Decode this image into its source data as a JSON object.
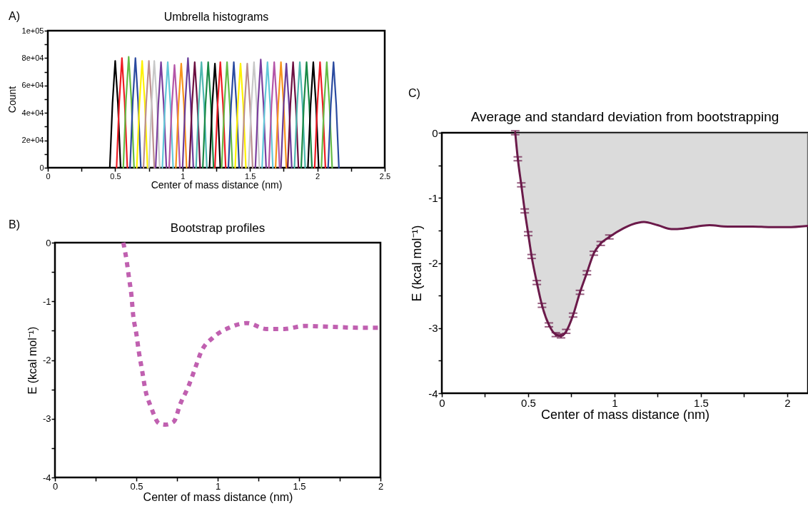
{
  "chart_data": [
    {
      "type": "line",
      "title": "Umbrella histograms",
      "xlabel": "Center of mass distance (nm)",
      "ylabel": "Count",
      "annotations": [
        "A)"
      ],
      "xlim": [
        0,
        2.5
      ],
      "ylim": [
        0,
        100000
      ],
      "xticks": [
        0,
        {
          "value": 0.25,
          "label": null
        },
        0.5,
        {
          "value": 0.75,
          "label": null
        },
        1,
        {
          "value": 1.25,
          "label": null
        },
        1.5,
        {
          "value": 1.75,
          "label": null
        },
        2,
        {
          "value": 2.25,
          "label": null
        },
        2.5
      ],
      "yticks": [
        0,
        {
          "value": 10000,
          "label": null
        },
        {
          "value": 20000,
          "label": "2e+04"
        },
        {
          "value": 30000,
          "label": null
        },
        {
          "value": 40000,
          "label": "4e+04"
        },
        {
          "value": 50000,
          "label": null
        },
        {
          "value": 60000,
          "label": "6e+04"
        },
        {
          "value": 70000,
          "label": null
        },
        {
          "value": 80000,
          "label": "8e+04"
        },
        {
          "value": 90000,
          "label": null
        },
        {
          "value": 100000,
          "label": "1e+05"
        }
      ],
      "line_style": "solid",
      "series": [
        {
          "color": "#000000",
          "x": [
            0.46,
            0.48,
            0.5,
            0.52,
            0.54
          ],
          "values": [
            0,
            47000,
            78000,
            47000,
            0
          ]
        },
        {
          "color": "#ee1c24",
          "x": [
            0.51,
            0.53,
            0.55,
            0.57,
            0.59
          ],
          "values": [
            0,
            48000,
            80000,
            48000,
            0
          ]
        },
        {
          "color": "#65bc45",
          "x": [
            0.56,
            0.58,
            0.6,
            0.62,
            0.64
          ],
          "values": [
            0,
            49000,
            81000,
            49000,
            0
          ]
        },
        {
          "color": "#2b4ba0",
          "x": [
            0.61,
            0.63,
            0.65,
            0.67,
            0.69
          ],
          "values": [
            0,
            48000,
            80000,
            48000,
            0
          ]
        },
        {
          "color": "#fff200",
          "x": [
            0.66,
            0.68,
            0.7,
            0.72,
            0.74
          ],
          "values": [
            0,
            47000,
            78000,
            47000,
            0
          ]
        },
        {
          "color": "#bc8f8f",
          "x": [
            0.71,
            0.73,
            0.75,
            0.77,
            0.79
          ],
          "values": [
            0,
            47000,
            78000,
            47000,
            0
          ]
        },
        {
          "color": "#c8c8c8",
          "x": [
            0.75,
            0.77,
            0.79,
            0.81,
            0.83
          ],
          "values": [
            0,
            47000,
            78000,
            47000,
            0
          ]
        },
        {
          "color": "#7b3f9e",
          "x": [
            0.8,
            0.82,
            0.84,
            0.86,
            0.88
          ],
          "values": [
            0,
            46000,
            77000,
            46000,
            0
          ]
        },
        {
          "color": "#63c8d8",
          "x": [
            0.85,
            0.87,
            0.89,
            0.91,
            0.93
          ],
          "values": [
            0,
            46000,
            77000,
            46000,
            0
          ]
        },
        {
          "color": "#b556a8",
          "x": [
            0.9,
            0.92,
            0.94,
            0.96,
            0.98
          ],
          "values": [
            0,
            45000,
            75000,
            45000,
            0
          ]
        },
        {
          "color": "#f7941d",
          "x": [
            0.95,
            0.97,
            0.99,
            1.01,
            1.03
          ],
          "values": [
            0,
            46000,
            76000,
            46000,
            0
          ]
        },
        {
          "color": "#6a3d9a",
          "x": [
            1.0,
            1.02,
            1.04,
            1.06,
            1.08
          ],
          "values": [
            0,
            48000,
            80000,
            48000,
            0
          ]
        },
        {
          "color": "#6b1041",
          "x": [
            1.05,
            1.07,
            1.09,
            1.11,
            1.13
          ],
          "values": [
            0,
            46000,
            77000,
            46000,
            0
          ]
        },
        {
          "color": "#4fb8b0",
          "x": [
            1.1,
            1.12,
            1.14,
            1.16,
            1.18
          ],
          "values": [
            0,
            46000,
            77000,
            46000,
            0
          ]
        },
        {
          "color": "#1a8a47",
          "x": [
            1.15,
            1.17,
            1.19,
            1.21,
            1.23
          ],
          "values": [
            0,
            46000,
            77000,
            46000,
            0
          ]
        },
        {
          "color": "#000000",
          "x": [
            1.2,
            1.22,
            1.24,
            1.26,
            1.28
          ],
          "values": [
            0,
            46000,
            76000,
            46000,
            0
          ]
        },
        {
          "color": "#ee1c24",
          "x": [
            1.24,
            1.26,
            1.28,
            1.3,
            1.32
          ],
          "values": [
            0,
            46000,
            77000,
            46000,
            0
          ]
        },
        {
          "color": "#65bc45",
          "x": [
            1.29,
            1.31,
            1.33,
            1.35,
            1.37
          ],
          "values": [
            0,
            46000,
            77000,
            46000,
            0
          ]
        },
        {
          "color": "#2b4ba0",
          "x": [
            1.34,
            1.36,
            1.38,
            1.4,
            1.42
          ],
          "values": [
            0,
            46000,
            77000,
            46000,
            0
          ]
        },
        {
          "color": "#fff200",
          "x": [
            1.39,
            1.41,
            1.43,
            1.45,
            1.47
          ],
          "values": [
            0,
            46000,
            76000,
            46000,
            0
          ]
        },
        {
          "color": "#bc8f8f",
          "x": [
            1.44,
            1.46,
            1.48,
            1.5,
            1.52
          ],
          "values": [
            0,
            46000,
            76000,
            46000,
            0
          ]
        },
        {
          "color": "#c8c8c8",
          "x": [
            1.49,
            1.51,
            1.53,
            1.55,
            1.57
          ],
          "values": [
            0,
            46000,
            77000,
            46000,
            0
          ]
        },
        {
          "color": "#7b3f9e",
          "x": [
            1.54,
            1.56,
            1.58,
            1.6,
            1.62
          ],
          "values": [
            0,
            47000,
            79000,
            47000,
            0
          ]
        },
        {
          "color": "#63c8d8",
          "x": [
            1.59,
            1.61,
            1.63,
            1.65,
            1.67
          ],
          "values": [
            0,
            46000,
            77000,
            46000,
            0
          ]
        },
        {
          "color": "#b556a8",
          "x": [
            1.64,
            1.66,
            1.68,
            1.7,
            1.72
          ],
          "values": [
            0,
            46000,
            77000,
            46000,
            0
          ]
        },
        {
          "color": "#f7941d",
          "x": [
            1.69,
            1.71,
            1.73,
            1.75,
            1.77
          ],
          "values": [
            0,
            46000,
            77000,
            46000,
            0
          ]
        },
        {
          "color": "#6a3d9a",
          "x": [
            1.73,
            1.75,
            1.77,
            1.79,
            1.81
          ],
          "values": [
            0,
            46000,
            76000,
            46000,
            0
          ]
        },
        {
          "color": "#6b1041",
          "x": [
            1.78,
            1.8,
            1.82,
            1.84,
            1.86
          ],
          "values": [
            0,
            46000,
            77000,
            46000,
            0
          ]
        },
        {
          "color": "#4fb8b0",
          "x": [
            1.83,
            1.85,
            1.87,
            1.89,
            1.91
          ],
          "values": [
            0,
            46000,
            77000,
            46000,
            0
          ]
        },
        {
          "color": "#1a8a47",
          "x": [
            1.88,
            1.9,
            1.92,
            1.94,
            1.96
          ],
          "values": [
            0,
            46000,
            77000,
            46000,
            0
          ]
        },
        {
          "color": "#000000",
          "x": [
            1.93,
            1.95,
            1.97,
            1.99,
            2.01
          ],
          "values": [
            0,
            46000,
            77000,
            46000,
            0
          ]
        },
        {
          "color": "#ee1c24",
          "x": [
            1.98,
            2.0,
            2.02,
            2.04,
            2.06
          ],
          "values": [
            0,
            46000,
            77000,
            46000,
            0
          ]
        },
        {
          "color": "#65bc45",
          "x": [
            2.03,
            2.05,
            2.07,
            2.09,
            2.11
          ],
          "values": [
            0,
            46000,
            77000,
            46000,
            0
          ]
        },
        {
          "color": "#2b4ba0",
          "x": [
            2.08,
            2.1,
            2.12,
            2.14,
            2.16
          ],
          "values": [
            0,
            46000,
            77000,
            46000,
            0
          ]
        }
      ]
    },
    {
      "type": "line",
      "title": "Bootstrap profiles",
      "xlabel": "Center of mass distance (nm)",
      "ylabel": "E (kcal mol⁻¹)",
      "annotations": [
        "B)"
      ],
      "xlim": [
        0,
        2
      ],
      "ylim": [
        -4,
        0
      ],
      "xticks": [
        0,
        {
          "value": 0.25,
          "label": null
        },
        0.5,
        {
          "value": 0.75,
          "label": null
        },
        1,
        {
          "value": 1.25,
          "label": null
        },
        1.5,
        {
          "value": 1.75,
          "label": null
        },
        2
      ],
      "yticks": [
        -4,
        {
          "value": -3.5,
          "label": null
        },
        -3,
        {
          "value": -2.5,
          "label": null
        },
        -2,
        {
          "value": -1.5,
          "label": null
        },
        -1,
        {
          "value": -0.5,
          "label": null
        },
        0
      ],
      "line_style": "dashed",
      "series": [
        {
          "color": "#c060b0",
          "x": [
            0.42,
            0.44,
            0.455,
            0.47,
            0.48,
            0.5,
            0.515,
            0.535,
            0.555,
            0.59,
            0.64,
            0.68,
            0.73,
            0.77,
            0.82,
            0.86,
            0.9,
            0.97,
            1.07,
            1.18,
            1.3,
            1.41,
            1.53,
            1.65,
            1.75,
            1.87,
            2.0
          ],
          "values": [
            0,
            -0.3,
            -0.6,
            -0.9,
            -1.22,
            -1.55,
            -1.85,
            -2.17,
            -2.5,
            -2.8,
            -3.08,
            -3.1,
            -3.05,
            -2.75,
            -2.45,
            -2.15,
            -1.85,
            -1.62,
            -1.45,
            -1.37,
            -1.47,
            -1.47,
            -1.42,
            -1.43,
            -1.44,
            -1.45,
            -1.45
          ]
        }
      ]
    },
    {
      "type": "line",
      "title": "Average and standard deviation from bootstrapping",
      "xlabel": "Center of mass distance (nm)",
      "ylabel": "E (kcal mol⁻¹)",
      "annotations": [
        "C)"
      ],
      "xlim": [
        0,
        2.12
      ],
      "ylim": [
        -4,
        0
      ],
      "xticks": [
        0,
        {
          "value": 0.25,
          "label": null
        },
        0.5,
        {
          "value": 0.75,
          "label": null
        },
        1,
        {
          "value": 1.25,
          "label": null
        },
        1.5,
        {
          "value": 1.75,
          "label": null
        },
        2
      ],
      "yticks": [
        -4,
        {
          "value": -3.5,
          "label": null
        },
        -3,
        {
          "value": -2.5,
          "label": null
        },
        -2,
        {
          "value": -1.5,
          "label": null
        },
        -1,
        {
          "value": -0.5,
          "label": null
        },
        0
      ],
      "line_style": "solid",
      "series": [
        {
          "color": "#6b1a4a",
          "x": [
            0.425,
            0.44,
            0.46,
            0.48,
            0.5,
            0.52,
            0.55,
            0.58,
            0.62,
            0.66,
            0.69,
            0.72,
            0.76,
            0.8,
            0.84,
            0.88,
            0.92,
            0.97,
            1.05,
            1.1,
            1.17,
            1.25,
            1.33,
            1.4,
            1.5,
            1.55,
            1.65,
            1.8,
            1.9,
            2.0,
            2.12
          ],
          "values": [
            0,
            -0.4,
            -0.8,
            -1.2,
            -1.55,
            -1.9,
            -2.3,
            -2.65,
            -2.95,
            -3.1,
            -3.12,
            -3.05,
            -2.8,
            -2.45,
            -2.15,
            -1.85,
            -1.7,
            -1.6,
            -1.47,
            -1.41,
            -1.37,
            -1.42,
            -1.48,
            -1.47,
            -1.43,
            -1.42,
            -1.44,
            -1.44,
            -1.45,
            -1.45,
            -1.43
          ],
          "errors": [
            0.03,
            0.03,
            0.03,
            0.03,
            0.03,
            0.03,
            0.03,
            0.03,
            0.03,
            0.03,
            0.03,
            0.03,
            0.03,
            0.03,
            0.03,
            0.03,
            0.03,
            0.03,
            null,
            null,
            null,
            null,
            null,
            null,
            null,
            null,
            null,
            null,
            null,
            null,
            null
          ],
          "lower": [
            0,
            -0.4,
            -0.8,
            -1.2,
            -1.55,
            -1.9,
            -2.3,
            -2.65,
            -2.95,
            -3.1,
            -3.12,
            -3.05,
            -2.8,
            -2.45,
            -2.15,
            -1.85,
            -1.7,
            -1.6,
            -1.47,
            -1.41,
            -1.37,
            -1.42,
            -1.48,
            -1.47,
            -1.43,
            -1.42,
            -1.44,
            -1.44,
            -1.45,
            -1.45,
            -1.43
          ],
          "upper": [
            0,
            0,
            0,
            0,
            0,
            0,
            0,
            0,
            0,
            0,
            0,
            0,
            0,
            0,
            0,
            0,
            0,
            0,
            0,
            0,
            0,
            0,
            0,
            0,
            0,
            0,
            0,
            0,
            0,
            0,
            0
          ]
        }
      ]
    }
  ]
}
